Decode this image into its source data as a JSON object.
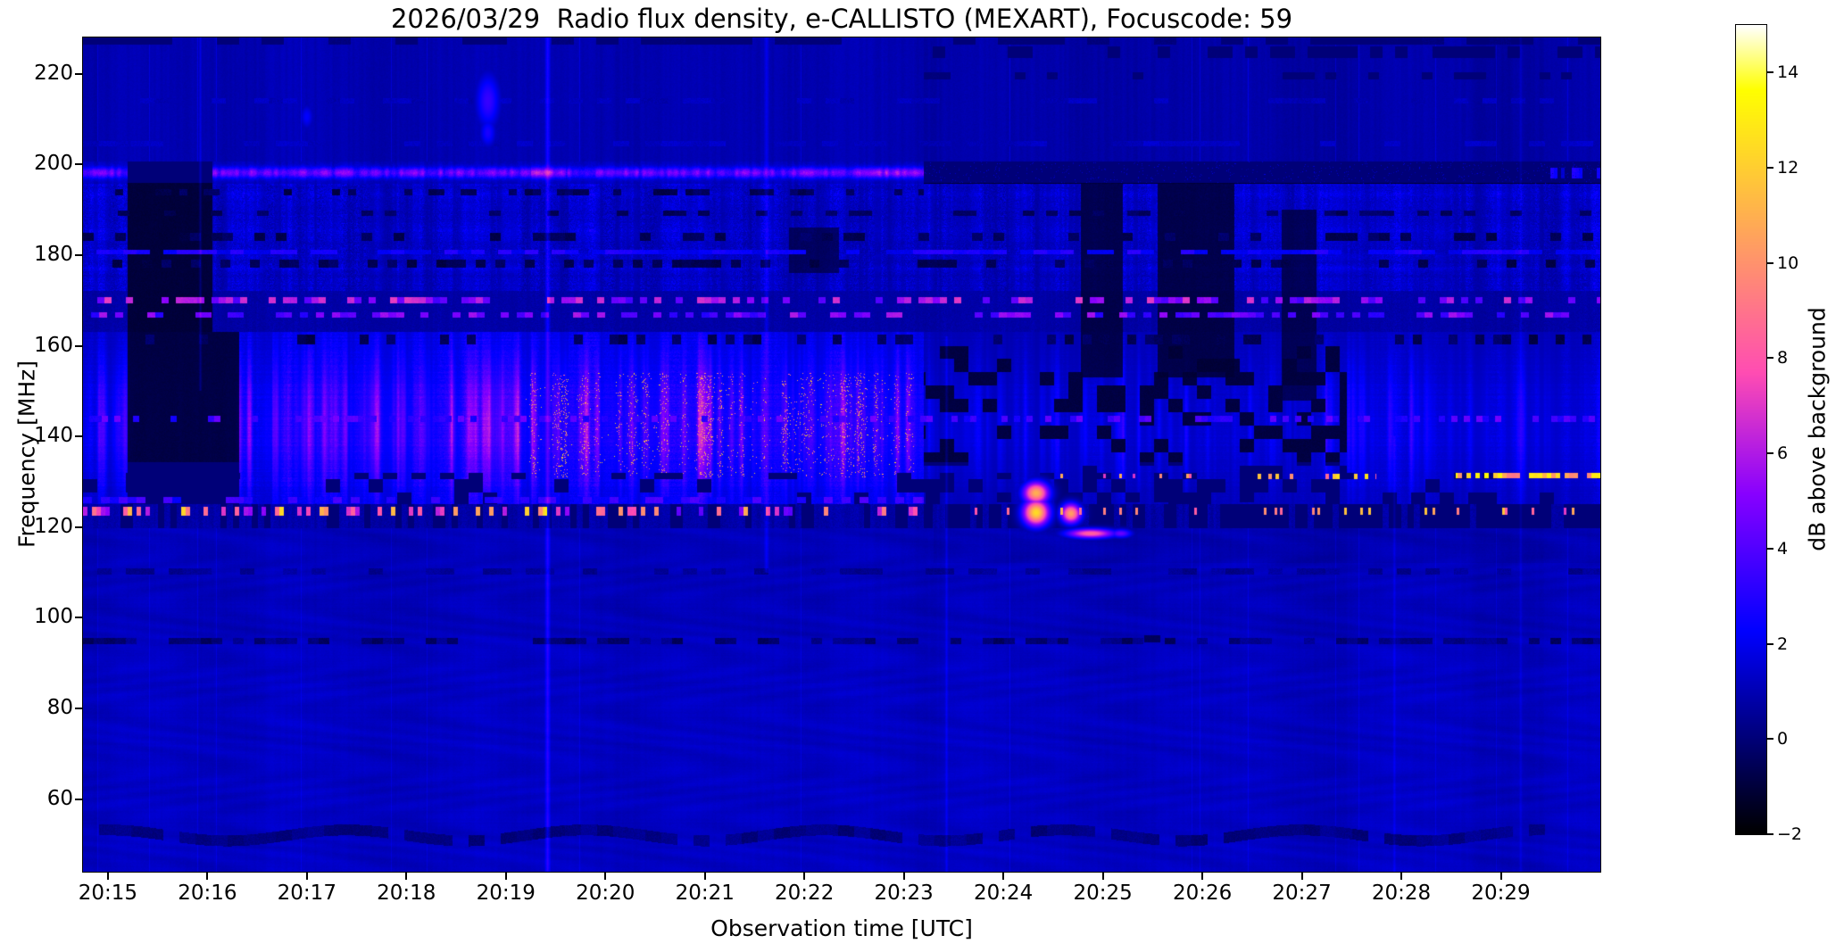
{
  "chart_data": {
    "type": "heatmap",
    "title": "2026/03/29  Radio flux density, e-CALLISTO (MEXART), Focuscode: 59",
    "xlabel": "Observation time [UTC]",
    "ylabel": "Frequency [MHz]",
    "x_ticks": [
      {
        "label": "20:15",
        "minute": 15
      },
      {
        "label": "20:16",
        "minute": 16
      },
      {
        "label": "20:17",
        "minute": 17
      },
      {
        "label": "20:18",
        "minute": 18
      },
      {
        "label": "20:19",
        "minute": 19
      },
      {
        "label": "20:20",
        "minute": 20
      },
      {
        "label": "20:21",
        "minute": 21
      },
      {
        "label": "20:22",
        "minute": 22
      },
      {
        "label": "20:23",
        "minute": 23
      },
      {
        "label": "20:24",
        "minute": 24
      },
      {
        "label": "20:25",
        "minute": 25
      },
      {
        "label": "20:26",
        "minute": 26
      },
      {
        "label": "20:27",
        "minute": 27
      },
      {
        "label": "20:28",
        "minute": 28
      },
      {
        "label": "20:29",
        "minute": 29
      }
    ],
    "x_range_minutes_after_20h": [
      14.75,
      30.0
    ],
    "y_ticks": [
      {
        "label": "220",
        "mhz": 220
      },
      {
        "label": "200",
        "mhz": 200
      },
      {
        "label": "180",
        "mhz": 180
      },
      {
        "label": "160",
        "mhz": 160
      },
      {
        "label": "140",
        "mhz": 140
      },
      {
        "label": "120",
        "mhz": 120
      },
      {
        "label": "100",
        "mhz": 100
      },
      {
        "label": "80",
        "mhz": 80
      },
      {
        "label": "60",
        "mhz": 60
      }
    ],
    "y_range_mhz": [
      44,
      228
    ],
    "grid": false,
    "colorbar": {
      "label": "dB above background",
      "value_range": [
        -2,
        15
      ],
      "ticks": [
        {
          "label": "14",
          "value": 14
        },
        {
          "label": "12",
          "value": 12
        },
        {
          "label": "10",
          "value": 10
        },
        {
          "label": "8",
          "value": 8
        },
        {
          "label": "6",
          "value": 6
        },
        {
          "label": "4",
          "value": 4
        },
        {
          "label": "2",
          "value": 2
        },
        {
          "label": "0",
          "value": 0
        },
        {
          "label": "−2",
          "value": -2
        }
      ],
      "colormap": "gnuplot2"
    },
    "description": "Dynamic radio spectrogram: dark-blue quiet background below 120 MHz with moire fringes; bursty emission band 125-163 MHz brightest (pink/orange/yellow) 20:17-20:23 around 133-152 MHz; bursty interference line near 123 MHz; dashed carrier lines near 144, 167 and 170 MHz; textured noise band 172-196 MHz; bright magenta carrier at 198 MHz that cuts off (goes black) at 20:23; dark vertical data gap 20:15.2-20:16.3; bright orange dashes near 131 MHz after 20:26.5.",
    "bands": {
      "quiet_top": {
        "f_min": 200.6,
        "base": 0.5,
        "post_dim": 0.13,
        "event_t": 23.2
      },
      "line198": {
        "f": [
          195.8,
          200.6
        ],
        "center": 198.15,
        "sigma": 0.8,
        "cut_t": 23.2,
        "line_base": 2.6,
        "line_var": 2.6,
        "off_val": -1.35,
        "bright_windows": [
          [
            19.25,
            19.6,
            1.4
          ],
          [
            22.55,
            23.2,
            1.2
          ]
        ]
      },
      "textured": {
        "f": [
          172.2,
          195.8
        ],
        "base": 0.62,
        "streak": 1.25,
        "fine": 1.45
      },
      "dashzone": {
        "f": [
          163.0,
          172.2
        ],
        "base": 0.42
      },
      "active": {
        "f": [
          125.0,
          163.0
        ],
        "base": 0.45,
        "core_center": 142.5,
        "core_sigma": 10.5,
        "core_amp": 4.2,
        "hot_t": [
          19.2,
          23.1
        ],
        "envelope": [
          [
            14.75,
            15.2,
            0.55
          ],
          [
            15.2,
            16.32,
            0.5
          ],
          [
            16.32,
            16.65,
            0.7
          ],
          [
            16.65,
            23.2,
            1.0
          ],
          [
            23.2,
            27.45,
            0.42
          ],
          [
            27.45,
            30.01,
            0.52
          ]
        ],
        "black_patch_t": [
          23.2,
          27.45
        ],
        "black_patch_prob": 0.3
      },
      "boundary": {
        "f": [
          119.8,
          125.0
        ],
        "base": 0.32,
        "black_prob_pre": 0.33,
        "black_prob_post": 0.8,
        "event_t": 23.2
      },
      "quiet_low": {
        "base": 0.78,
        "below96_boost": 0.13,
        "post_dim_t": 23.3
      }
    },
    "features": [
      {
        "op": "rect",
        "t": [
          15.2,
          16.05
        ],
        "f": [
          163,
          200.6
        ],
        "v": -1.2,
        "blend": 0.92
      },
      {
        "op": "rect",
        "t": [
          15.2,
          16.32
        ],
        "f": [
          125,
          163
        ],
        "v": -1.1,
        "blend": 0.9
      },
      {
        "op": "rect",
        "t": [
          24.78,
          25.2
        ],
        "f": [
          153,
          196
        ],
        "v": -1.05,
        "blend": 0.85
      },
      {
        "op": "rect",
        "t": [
          25.55,
          26.32
        ],
        "f": [
          153,
          196
        ],
        "v": -1.1,
        "blend": 0.85
      },
      {
        "op": "rect",
        "t": [
          26.8,
          27.15
        ],
        "f": [
          148,
          190
        ],
        "v": -0.95,
        "blend": 0.8
      },
      {
        "op": "rect",
        "t": [
          21.85,
          22.35
        ],
        "f": [
          176,
          186
        ],
        "v": -0.9,
        "blend": 0.75
      },
      {
        "op": "rect",
        "t": [
          25.42,
          25.58
        ],
        "f": [
          94.5,
          96.2
        ],
        "v": -0.85,
        "blend": 0.8
      },
      {
        "op": "hdashes",
        "f": [
          177.3,
          179.0
        ],
        "t": [
          14.75,
          30
        ],
        "vals": [
          -0.9,
          -0.2
        ],
        "scale": 11,
        "prob": 0.38,
        "seed": 106
      },
      {
        "op": "hdashes",
        "f": [
          183.2,
          185.0
        ],
        "t": [
          14.75,
          30
        ],
        "vals": [
          -0.85,
          -0.15
        ],
        "scale": 12,
        "prob": 0.33,
        "seed": 107
      },
      {
        "op": "hdashes",
        "f": [
          188.6,
          189.9
        ],
        "t": [
          14.75,
          30
        ],
        "vals": [
          -0.7,
          -0.1
        ],
        "scale": 13,
        "prob": 0.28,
        "seed": 108
      },
      {
        "op": "hdashes",
        "f": [
          160.4,
          162.4
        ],
        "t": [
          14.75,
          30
        ],
        "vals": [
          -0.9,
          -0.1
        ],
        "scale": 10,
        "prob": 0.32,
        "seed": 109
      },
      {
        "op": "hdashes",
        "f": [
          193.1,
          194.6
        ],
        "t": [
          14.75,
          23.2
        ],
        "vals": [
          -0.9,
          -0.2
        ],
        "scale": 9,
        "prob": 0.35,
        "seed": 110
      },
      {
        "op": "hdashes",
        "f": [
          223.4,
          226.0
        ],
        "t": [
          23.2,
          30
        ],
        "vals": [
          -0.75,
          -0.05
        ],
        "scale": 14,
        "prob": 0.4,
        "seed": 116
      },
      {
        "op": "hdashes",
        "f": [
          218.8,
          220.4
        ],
        "t": [
          23.2,
          30
        ],
        "vals": [
          -0.5,
          0.05
        ],
        "scale": 12,
        "prob": 0.3,
        "seed": 117
      },
      {
        "op": "hdashes",
        "f": [
          226.5,
          228.0
        ],
        "t": [
          14.75,
          30
        ],
        "vals": [
          -0.6,
          0.1
        ],
        "scale": 25,
        "prob": 0.5,
        "seed": 126
      },
      {
        "op": "hdashes",
        "f": [
          50.8,
          53.2
        ],
        "t": [
          14.75,
          30
        ],
        "vals": [
          -0.15,
          0.55
        ],
        "scale": 18,
        "prob": 0.75,
        "seed": 118,
        "wave": [
          1.2,
          2.4
        ]
      },
      {
        "op": "hdashes",
        "f": [
          94.1,
          95.5
        ],
        "t": [
          14.75,
          30
        ],
        "vals": [
          -0.55,
          0.55
        ],
        "scale": 12,
        "prob": 0.6,
        "seed": 119
      },
      {
        "op": "hdashes",
        "f": [
          109.5,
          111.0
        ],
        "t": [
          14.75,
          30
        ],
        "vals": [
          0.2,
          0.8
        ],
        "scale": 16,
        "prob": 0.5,
        "seed": 120
      },
      {
        "op": "hdashes",
        "f": [
          204.0,
          205.2
        ],
        "t": [
          14.75,
          30
        ],
        "vals": [
          0.9,
          1.5
        ],
        "scale": 18,
        "prob": 0.55,
        "seed": 124
      },
      {
        "op": "hdashes",
        "f": [
          213.5,
          214.6
        ],
        "t": [
          14.75,
          30
        ],
        "vals": [
          0.8,
          1.4
        ],
        "scale": 16,
        "prob": 0.45,
        "seed": 125
      },
      {
        "op": "hdashes",
        "f": [
          166.2,
          167.4
        ],
        "t": [
          14.75,
          30
        ],
        "vals": [
          3.0,
          6.0
        ],
        "scale": 9,
        "prob": 0.5,
        "seed": 101
      },
      {
        "op": "hdashes",
        "f": [
          169.4,
          170.8
        ],
        "t": [
          14.75,
          30
        ],
        "vals": [
          3.6,
          7.2
        ],
        "scale": 8,
        "prob": 0.5,
        "seed": 102
      },
      {
        "op": "hdashes",
        "f": [
          143.2,
          144.5
        ],
        "t": [
          14.75,
          30
        ],
        "vals": [
          2.6,
          4.8
        ],
        "scale": 7,
        "prob": 0.38,
        "seed": 103
      },
      {
        "op": "hdashes",
        "f": [
          180.1,
          181.2
        ],
        "t": [
          14.75,
          30
        ],
        "vals": [
          1.8,
          3.2
        ],
        "scale": 15,
        "prob": 0.75,
        "seed": 104
      },
      {
        "op": "hdashes",
        "f": [
          125.3,
          126.6
        ],
        "t": [
          14.75,
          23.2
        ],
        "vals": [
          2.0,
          4.0
        ],
        "scale": 10,
        "prob": 0.5,
        "seed": 105
      },
      {
        "op": "hdashes",
        "f": [
          122.6,
          124.4
        ],
        "t": [
          14.75,
          20.4
        ],
        "vals": [
          5.0,
          12.5
        ],
        "scale": 5,
        "prob": 0.38,
        "seed": 111
      },
      {
        "op": "hdashes",
        "f": [
          122.6,
          124.4
        ],
        "t": [
          20.4,
          23.2
        ],
        "vals": [
          4.0,
          11.0
        ],
        "scale": 5,
        "prob": 0.24,
        "seed": 112
      },
      {
        "op": "hdashes",
        "f": [
          122.8,
          124.2
        ],
        "t": [
          23.2,
          30
        ],
        "vals": [
          7.0,
          12.0
        ],
        "scale": 3,
        "prob": 0.11,
        "seed": 113
      },
      {
        "op": "hdashes",
        "f": [
          130.6,
          131.8
        ],
        "t": [
          26.55,
          27.75
        ],
        "vals": [
          8.0,
          13.0
        ],
        "scale": 4,
        "prob": 0.42,
        "seed": 114
      },
      {
        "op": "hdashes",
        "f": [
          130.7,
          131.9
        ],
        "t": [
          28.55,
          30
        ],
        "vals": [
          9.0,
          13.5
        ],
        "scale": 5,
        "prob": 0.6,
        "seed": 115
      },
      {
        "op": "hdashes",
        "f": [
          130.8,
          131.8
        ],
        "t": [
          24.3,
          25.9
        ],
        "vals": [
          6.0,
          11.0
        ],
        "scale": 3,
        "prob": 0.1,
        "seed": 123
      },
      {
        "op": "hdashes",
        "f": [
          197.0,
          199.2
        ],
        "t": [
          29.45,
          30
        ],
        "vals": [
          1.5,
          3.2
        ],
        "scale": 4,
        "prob": 0.5,
        "seed": 122
      },
      {
        "op": "blob",
        "t": 24.33,
        "f": 123.2,
        "dt": 0.09,
        "df": 2.0,
        "v": 12.5
      },
      {
        "op": "blob",
        "t": 24.33,
        "f": 127.5,
        "dt": 0.09,
        "df": 1.7,
        "v": 11.0
      },
      {
        "op": "blob",
        "t": 24.68,
        "f": 123.0,
        "dt": 0.07,
        "df": 1.5,
        "v": 10.5
      },
      {
        "op": "blob",
        "t": 24.88,
        "f": 118.6,
        "dt": 0.17,
        "df": 0.75,
        "v": 8.5
      },
      {
        "op": "blob",
        "t": 25.18,
        "f": 118.6,
        "dt": 0.08,
        "df": 0.7,
        "v": 4.5
      },
      {
        "op": "blob",
        "t": 18.82,
        "f": 214.0,
        "dt": 0.09,
        "df": 4.5,
        "v": 3.4
      },
      {
        "op": "blob",
        "t": 18.82,
        "f": 207.0,
        "dt": 0.06,
        "df": 2.4,
        "v": 2.8
      },
      {
        "op": "blob",
        "t": 17.0,
        "f": 210.5,
        "dt": 0.05,
        "df": 2.0,
        "v": 2.3
      },
      {
        "op": "vline",
        "t": 19.42,
        "f": [
          44,
          228
        ],
        "add": 1.9,
        "w": 0.035
      },
      {
        "op": "vline",
        "t": 21.62,
        "f": [
          110,
          228
        ],
        "add": 1.1,
        "w": 0.03
      },
      {
        "op": "vline",
        "t": 15.93,
        "f": [
          150,
          228
        ],
        "add": 1.0,
        "w": 0.02
      },
      {
        "op": "vline",
        "t": 23.43,
        "f": [
          44,
          162
        ],
        "add": 0.9,
        "w": 0.02
      },
      {
        "op": "vline",
        "t": 27.93,
        "f": [
          44,
          140
        ],
        "add": 0.7,
        "w": 0.018
      },
      {
        "op": "vline",
        "t": 29.2,
        "f": [
          44,
          228
        ],
        "add": 0.6,
        "w": 0.018
      },
      {
        "op": "sparkle",
        "t": [
          23.2,
          30
        ],
        "f": [
          196,
          200.5
        ],
        "prob": 0.02,
        "vals": [
          0.6,
          1.8
        ],
        "seed": 121
      }
    ]
  }
}
